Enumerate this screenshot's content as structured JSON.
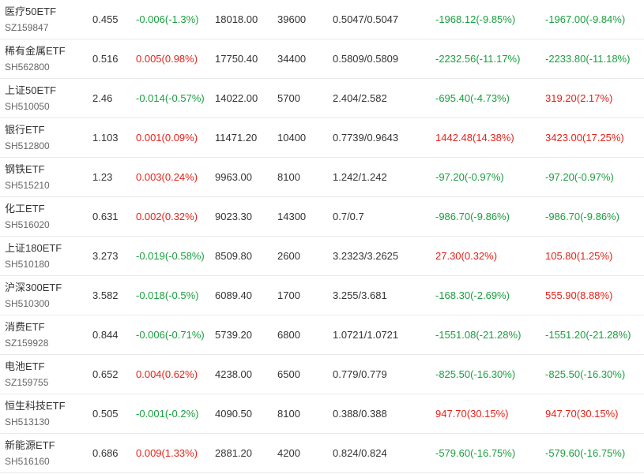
{
  "colors": {
    "up": "#e2231a",
    "down": "#1a9e3f",
    "text": "#333333",
    "subtext": "#666666",
    "row_border": "#e9e9e9"
  },
  "rows": [
    {
      "name": "医疗50ETF",
      "code": "SZ159847",
      "price": "0.455",
      "change": "-0.006(-1.3%)",
      "change_dir": "down",
      "market_value": "18018.00",
      "shares": "39600",
      "cost": "0.5047/0.5047",
      "pnl_a": "-1968.12(-9.85%)",
      "pnl_a_dir": "down",
      "pnl_b": "-1967.00(-9.84%)",
      "pnl_b_dir": "down"
    },
    {
      "name": "稀有金属ETF",
      "code": "SH562800",
      "price": "0.516",
      "change": "0.005(0.98%)",
      "change_dir": "up",
      "market_value": "17750.40",
      "shares": "34400",
      "cost": "0.5809/0.5809",
      "pnl_a": "-2232.56(-11.17%)",
      "pnl_a_dir": "down",
      "pnl_b": "-2233.80(-11.18%)",
      "pnl_b_dir": "down"
    },
    {
      "name": "上证50ETF",
      "code": "SH510050",
      "price": "2.46",
      "change": "-0.014(-0.57%)",
      "change_dir": "down",
      "market_value": "14022.00",
      "shares": "5700",
      "cost": "2.404/2.582",
      "pnl_a": "-695.40(-4.73%)",
      "pnl_a_dir": "down",
      "pnl_b": "319.20(2.17%)",
      "pnl_b_dir": "up"
    },
    {
      "name": "银行ETF",
      "code": "SH512800",
      "price": "1.103",
      "change": "0.001(0.09%)",
      "change_dir": "up",
      "market_value": "11471.20",
      "shares": "10400",
      "cost": "0.7739/0.9643",
      "pnl_a": "1442.48(14.38%)",
      "pnl_a_dir": "up",
      "pnl_b": "3423.00(17.25%)",
      "pnl_b_dir": "up"
    },
    {
      "name": "钢铁ETF",
      "code": "SH515210",
      "price": "1.23",
      "change": "0.003(0.24%)",
      "change_dir": "up",
      "market_value": "9963.00",
      "shares": "8100",
      "cost": "1.242/1.242",
      "pnl_a": "-97.20(-0.97%)",
      "pnl_a_dir": "down",
      "pnl_b": "-97.20(-0.97%)",
      "pnl_b_dir": "down"
    },
    {
      "name": "化工ETF",
      "code": "SH516020",
      "price": "0.631",
      "change": "0.002(0.32%)",
      "change_dir": "up",
      "market_value": "9023.30",
      "shares": "14300",
      "cost": "0.7/0.7",
      "pnl_a": "-986.70(-9.86%)",
      "pnl_a_dir": "down",
      "pnl_b": "-986.70(-9.86%)",
      "pnl_b_dir": "down"
    },
    {
      "name": "上证180ETF",
      "code": "SH510180",
      "price": "3.273",
      "change": "-0.019(-0.58%)",
      "change_dir": "down",
      "market_value": "8509.80",
      "shares": "2600",
      "cost": "3.2323/3.2625",
      "pnl_a": "27.30(0.32%)",
      "pnl_a_dir": "up",
      "pnl_b": "105.80(1.25%)",
      "pnl_b_dir": "up"
    },
    {
      "name": "沪深300ETF",
      "code": "SH510300",
      "price": "3.582",
      "change": "-0.018(-0.5%)",
      "change_dir": "down",
      "market_value": "6089.40",
      "shares": "1700",
      "cost": "3.255/3.681",
      "pnl_a": "-168.30(-2.69%)",
      "pnl_a_dir": "down",
      "pnl_b": "555.90(8.88%)",
      "pnl_b_dir": "up"
    },
    {
      "name": "消费ETF",
      "code": "SZ159928",
      "price": "0.844",
      "change": "-0.006(-0.71%)",
      "change_dir": "down",
      "market_value": "5739.20",
      "shares": "6800",
      "cost": "1.0721/1.0721",
      "pnl_a": "-1551.08(-21.28%)",
      "pnl_a_dir": "down",
      "pnl_b": "-1551.20(-21.28%)",
      "pnl_b_dir": "down"
    },
    {
      "name": "电池ETF",
      "code": "SZ159755",
      "price": "0.652",
      "change": "0.004(0.62%)",
      "change_dir": "up",
      "market_value": "4238.00",
      "shares": "6500",
      "cost": "0.779/0.779",
      "pnl_a": "-825.50(-16.30%)",
      "pnl_a_dir": "down",
      "pnl_b": "-825.50(-16.30%)",
      "pnl_b_dir": "down"
    },
    {
      "name": "恒生科技ETF",
      "code": "SH513130",
      "price": "0.505",
      "change": "-0.001(-0.2%)",
      "change_dir": "down",
      "market_value": "4090.50",
      "shares": "8100",
      "cost": "0.388/0.388",
      "pnl_a": "947.70(30.15%)",
      "pnl_a_dir": "up",
      "pnl_b": "947.70(30.15%)",
      "pnl_b_dir": "up"
    },
    {
      "name": "新能源ETF",
      "code": "SH516160",
      "price": "0.686",
      "change": "0.009(1.33%)",
      "change_dir": "up",
      "market_value": "2881.20",
      "shares": "4200",
      "cost": "0.824/0.824",
      "pnl_a": "-579.60(-16.75%)",
      "pnl_a_dir": "down",
      "pnl_b": "-579.60(-16.75%)",
      "pnl_b_dir": "down"
    }
  ]
}
